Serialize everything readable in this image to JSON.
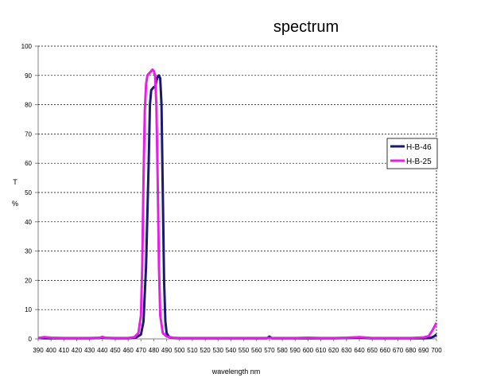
{
  "chart_data": {
    "type": "line",
    "title": "spectrum",
    "xlabel": "wavelength nm",
    "ylabel_lines": [
      "T",
      "%"
    ],
    "xlim": [
      390,
      700
    ],
    "ylim": [
      0,
      100
    ],
    "x_ticks": [
      390,
      400,
      410,
      420,
      430,
      440,
      450,
      460,
      470,
      480,
      490,
      500,
      510,
      520,
      530,
      540,
      550,
      560,
      570,
      580,
      590,
      600,
      610,
      620,
      630,
      640,
      650,
      660,
      670,
      680,
      690,
      700
    ],
    "y_ticks": [
      0,
      10,
      20,
      30,
      40,
      50,
      60,
      70,
      80,
      90,
      100
    ],
    "grid": "horizontal dashed",
    "legend_position": "right",
    "series": [
      {
        "name": "H-B-46",
        "color": "#1a1a6e",
        "points": [
          [
            390,
            0.3
          ],
          [
            395,
            0.2
          ],
          [
            400,
            0.2
          ],
          [
            410,
            0.2
          ],
          [
            420,
            0.2
          ],
          [
            430,
            0.2
          ],
          [
            438,
            0.3
          ],
          [
            440,
            0.5
          ],
          [
            442,
            0.3
          ],
          [
            450,
            0.2
          ],
          [
            460,
            0.2
          ],
          [
            466,
            0.4
          ],
          [
            470,
            1.5
          ],
          [
            472,
            6
          ],
          [
            474,
            25
          ],
          [
            476,
            60
          ],
          [
            477,
            80
          ],
          [
            478,
            85
          ],
          [
            480,
            86
          ],
          [
            481,
            86
          ],
          [
            482,
            88
          ],
          [
            483,
            89.5
          ],
          [
            484,
            90
          ],
          [
            485,
            89
          ],
          [
            486,
            80
          ],
          [
            487,
            50
          ],
          [
            488,
            20
          ],
          [
            489,
            6
          ],
          [
            490,
            2
          ],
          [
            492,
            0.6
          ],
          [
            495,
            0.3
          ],
          [
            500,
            0.2
          ],
          [
            510,
            0.2
          ],
          [
            520,
            0.2
          ],
          [
            530,
            0.2
          ],
          [
            540,
            0.2
          ],
          [
            550,
            0.2
          ],
          [
            560,
            0.2
          ],
          [
            568,
            0.2
          ],
          [
            570,
            0.8
          ],
          [
            572,
            0.2
          ],
          [
            580,
            0.2
          ],
          [
            590,
            0.2
          ],
          [
            600,
            0.2
          ],
          [
            610,
            0.2
          ],
          [
            620,
            0.2
          ],
          [
            630,
            0.3
          ],
          [
            640,
            0.4
          ],
          [
            650,
            0.2
          ],
          [
            660,
            0.2
          ],
          [
            670,
            0.2
          ],
          [
            680,
            0.2
          ],
          [
            690,
            0.2
          ],
          [
            695,
            0.3
          ],
          [
            698,
            0.8
          ],
          [
            700,
            1.5
          ]
        ]
      },
      {
        "name": "H-B-25",
        "color": "#e81ee8",
        "points": [
          [
            390,
            0.3
          ],
          [
            395,
            0.6
          ],
          [
            400,
            0.4
          ],
          [
            410,
            0.3
          ],
          [
            420,
            0.3
          ],
          [
            430,
            0.3
          ],
          [
            438,
            0.4
          ],
          [
            440,
            0.7
          ],
          [
            442,
            0.4
          ],
          [
            450,
            0.3
          ],
          [
            460,
            0.3
          ],
          [
            465,
            0.6
          ],
          [
            468,
            2
          ],
          [
            470,
            8
          ],
          [
            471,
            25
          ],
          [
            472,
            55
          ],
          [
            473,
            78
          ],
          [
            474,
            87
          ],
          [
            475,
            90
          ],
          [
            477,
            91
          ],
          [
            479,
            92
          ],
          [
            480,
            91.5
          ],
          [
            481,
            90
          ],
          [
            482,
            80
          ],
          [
            483,
            55
          ],
          [
            484,
            25
          ],
          [
            485,
            8
          ],
          [
            487,
            2
          ],
          [
            490,
            0.8
          ],
          [
            495,
            0.4
          ],
          [
            500,
            0.3
          ],
          [
            510,
            0.3
          ],
          [
            520,
            0.3
          ],
          [
            530,
            0.3
          ],
          [
            540,
            0.3
          ],
          [
            550,
            0.3
          ],
          [
            560,
            0.3
          ],
          [
            570,
            0.3
          ],
          [
            580,
            0.3
          ],
          [
            590,
            0.3
          ],
          [
            600,
            0.4
          ],
          [
            610,
            0.3
          ],
          [
            620,
            0.3
          ],
          [
            630,
            0.4
          ],
          [
            640,
            0.6
          ],
          [
            650,
            0.3
          ],
          [
            660,
            0.3
          ],
          [
            670,
            0.3
          ],
          [
            680,
            0.3
          ],
          [
            690,
            0.5
          ],
          [
            694,
            1
          ],
          [
            697,
            3
          ],
          [
            700,
            5.5
          ]
        ]
      }
    ]
  }
}
